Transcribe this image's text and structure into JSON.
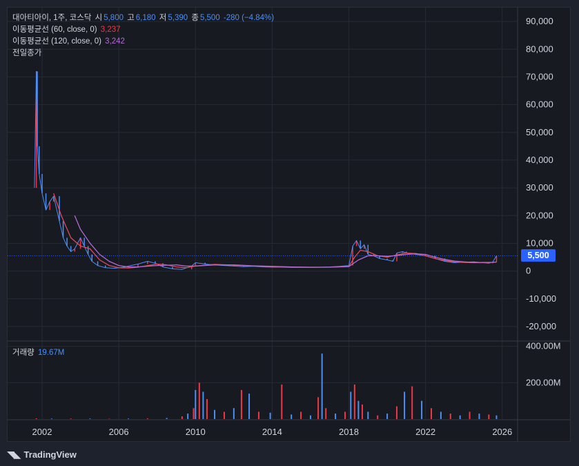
{
  "header": {
    "symbol": "대아티아이, 1주, 코스닥",
    "open_label": "시",
    "open": "5,800",
    "high_label": "고",
    "high": "6,180",
    "low_label": "저",
    "low": "5,390",
    "close_label": "종",
    "close": "5,500",
    "change": "-280 (−4.84%)"
  },
  "indicators": [
    {
      "label": "이동평균선 (60, close, 0)",
      "value": "3,237",
      "color": "#f23645"
    },
    {
      "label": "이동평균선 (120, close, 0)",
      "value": "3,242",
      "color": "#b36bd4"
    },
    {
      "label": "전일종가",
      "value": ""
    }
  ],
  "volume_legend": {
    "label": "거래량",
    "value": "19.67M"
  },
  "last_price_badge": "5,500",
  "brand": "TradingView",
  "colors": {
    "up": "#f23645",
    "down": "#4c8ff5",
    "ma60": "#e24b5b",
    "ma120": "#b36bd4",
    "badge": "#2962ff",
    "background": "#171a21"
  },
  "chart_data": [
    {
      "type": "line",
      "title": "대아티아이, 1주, 코스닥",
      "ylim": [
        -25000,
        95000
      ],
      "y_ticks": [
        "90,000",
        "80,000",
        "70,000",
        "60,000",
        "50,000",
        "40,000",
        "30,000",
        "20,000",
        "10,000",
        "0",
        "-10,000",
        "-20,000"
      ],
      "y_tick_values": [
        90000,
        80000,
        70000,
        60000,
        50000,
        40000,
        30000,
        20000,
        10000,
        0,
        -10000,
        -20000
      ],
      "x_ticks": [
        "2002",
        "2006",
        "2010",
        "2014",
        "2018",
        "2022",
        "2026"
      ],
      "x_tick_values": [
        2002,
        2006,
        2010,
        2014,
        2018,
        2022,
        2026
      ],
      "xlim": [
        2000.2,
        2026.8
      ],
      "last_price": 5500,
      "series": [
        {
          "name": "대아티아이",
          "x": [
            2001.6,
            2001.7,
            2001.75,
            2001.85,
            2002.0,
            2002.2,
            2002.4,
            2002.6,
            2002.9,
            2003.1,
            2003.3,
            2003.5,
            2003.7,
            2004.0,
            2004.2,
            2004.4,
            2004.6,
            2004.9,
            2005.3,
            2005.8,
            2006.3,
            2007.0,
            2007.5,
            2007.9,
            2008.3,
            2008.8,
            2009.3,
            2009.8,
            2010.0,
            2010.5,
            2011.0,
            2011.5,
            2012.0,
            2012.5,
            2013.0,
            2013.5,
            2014.0,
            2014.5,
            2015.0,
            2015.5,
            2016.0,
            2016.5,
            2017.0,
            2017.5,
            2018.0,
            2018.2,
            2018.4,
            2018.6,
            2018.8,
            2019.0,
            2019.3,
            2019.6,
            2020.0,
            2020.3,
            2020.5,
            2020.8,
            2021.0,
            2021.5,
            2022.0,
            2022.5,
            2023.0,
            2023.5,
            2024.0,
            2024.5,
            2025.0,
            2025.3,
            2025.5,
            2025.7
          ],
          "y": [
            30000,
            72000,
            45000,
            35000,
            28000,
            22000,
            25000,
            27000,
            18000,
            12000,
            9000,
            7000,
            8000,
            12000,
            9000,
            6000,
            3500,
            2000,
            1200,
            1000,
            1500,
            2500,
            3500,
            2800,
            1500,
            800,
            600,
            1800,
            3000,
            2500,
            2200,
            2000,
            1800,
            1600,
            1700,
            1500,
            1400,
            1400,
            1300,
            1300,
            1300,
            1400,
            1500,
            1700,
            2000,
            9000,
            11000,
            8000,
            9500,
            6000,
            5500,
            4500,
            4000,
            3500,
            6500,
            7000,
            6500,
            6000,
            5500,
            4500,
            3500,
            3000,
            3200,
            3300,
            3000,
            2800,
            3200,
            5500
          ]
        },
        {
          "name": "이동평균선 (60, close, 0)",
          "x": [
            2002.6,
            2003.0,
            2003.5,
            2004.0,
            2004.5,
            2005.0,
            2005.5,
            2006.0,
            2006.5,
            2007.0,
            2008.0,
            2008.5,
            2009.0,
            2009.5,
            2010.0,
            2011.0,
            2012.0,
            2013.0,
            2014.0,
            2015.0,
            2016.0,
            2017.0,
            2018.0,
            2018.3,
            2018.6,
            2019.0,
            2019.5,
            2020.0,
            2020.5,
            2021.0,
            2021.5,
            2022.0,
            2022.5,
            2023.0,
            2023.5,
            2024.0,
            2024.5,
            2025.0,
            2025.5,
            2025.7
          ],
          "y": [
            28000,
            20000,
            12000,
            9000,
            8000,
            4000,
            2000,
            1200,
            1100,
            1400,
            2500,
            2200,
            1500,
            1200,
            1800,
            2400,
            2100,
            1800,
            1600,
            1400,
            1300,
            1400,
            1700,
            5000,
            7500,
            7000,
            5500,
            5000,
            5800,
            6500,
            6300,
            5500,
            4500,
            3800,
            3300,
            3100,
            3000,
            3000,
            3100,
            3237
          ]
        },
        {
          "name": "이동평균선 (120, close, 0)",
          "x": [
            2003.7,
            2004.0,
            2004.5,
            2005.0,
            2005.5,
            2006.0,
            2006.5,
            2007.0,
            2008.0,
            2009.0,
            2009.5,
            2010.0,
            2011.0,
            2012.0,
            2013.0,
            2014.0,
            2015.0,
            2016.0,
            2017.0,
            2018.0,
            2018.5,
            2019.0,
            2019.5,
            2020.0,
            2020.5,
            2021.0,
            2021.5,
            2022.0,
            2022.5,
            2023.0,
            2023.5,
            2024.0,
            2024.5,
            2025.0,
            2025.5,
            2025.7
          ],
          "y": [
            20000,
            15000,
            10000,
            6000,
            3500,
            2000,
            1500,
            1500,
            2000,
            2200,
            1800,
            1800,
            2200,
            2200,
            1900,
            1700,
            1500,
            1400,
            1400,
            1600,
            4000,
            5500,
            5500,
            5300,
            5600,
            6000,
            6200,
            6000,
            5000,
            4200,
            3600,
            3300,
            3100,
            3100,
            3150,
            3242
          ]
        }
      ]
    },
    {
      "type": "bar",
      "title": "거래량",
      "ylim": [
        0,
        410
      ],
      "y_ticks": [
        "400.00M",
        "200.00M"
      ],
      "y_tick_values": [
        400,
        200
      ],
      "unit": "M",
      "x": [
        2001.7,
        2002.5,
        2003.5,
        2004.5,
        2005.5,
        2006.5,
        2007.5,
        2008.5,
        2009.3,
        2009.6,
        2009.9,
        2010.0,
        2010.2,
        2010.4,
        2010.6,
        2011.0,
        2011.5,
        2012.0,
        2012.4,
        2012.8,
        2013.3,
        2013.9,
        2014.5,
        2015.0,
        2015.5,
        2016.0,
        2016.4,
        2016.6,
        2016.8,
        2017.3,
        2017.8,
        2018.1,
        2018.3,
        2018.5,
        2018.7,
        2019.0,
        2019.5,
        2020.0,
        2020.5,
        2020.9,
        2021.3,
        2021.8,
        2022.3,
        2022.8,
        2023.3,
        2023.8,
        2024.3,
        2024.8,
        2025.3,
        2025.7
      ],
      "values": [
        4,
        3,
        3,
        3,
        2,
        3,
        4,
        6,
        15,
        30,
        60,
        160,
        200,
        150,
        110,
        50,
        40,
        60,
        160,
        140,
        40,
        35,
        190,
        25,
        40,
        20,
        120,
        360,
        60,
        30,
        40,
        150,
        190,
        100,
        80,
        40,
        20,
        30,
        70,
        150,
        180,
        100,
        60,
        40,
        30,
        20,
        40,
        30,
        25,
        20
      ]
    }
  ]
}
